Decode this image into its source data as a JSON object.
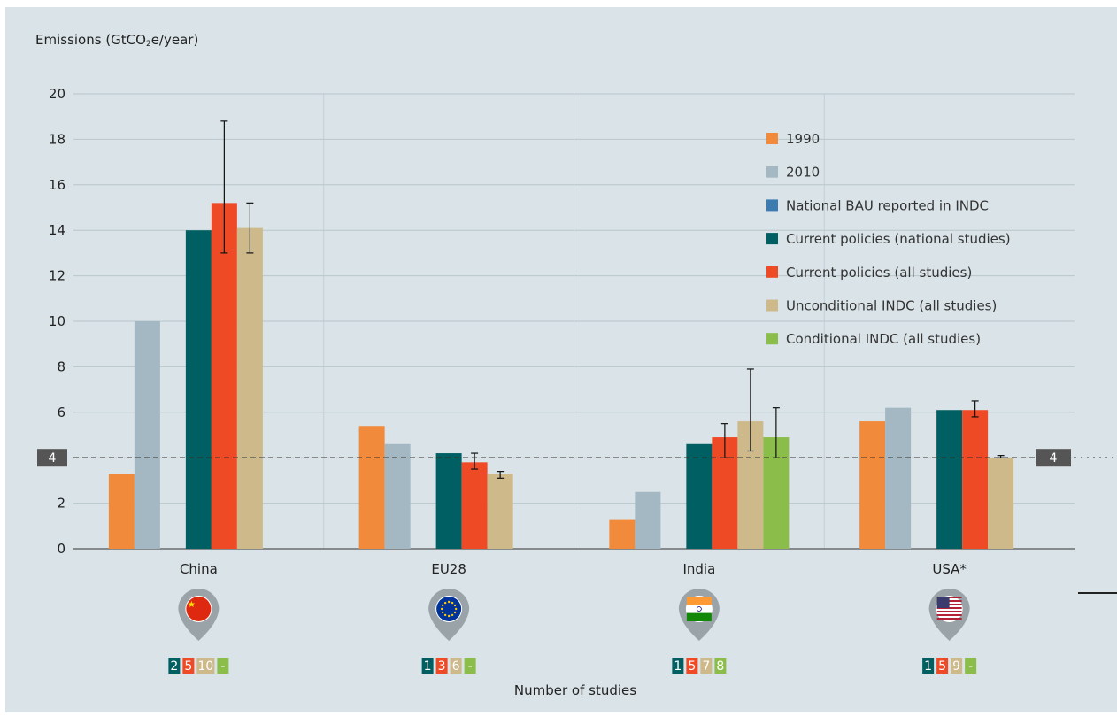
{
  "chart_data": {
    "type": "bar",
    "ylabel_main": "Emissions (GtCO",
    "ylabel_sub": "2",
    "ylabel_tail": "e/year)",
    "xlabel": "Number of studies",
    "ylim": [
      0,
      20
    ],
    "yticks": [
      "0",
      "2",
      "4",
      "6",
      "8",
      "10",
      "12",
      "14",
      "16",
      "18",
      "20"
    ],
    "reference_line": {
      "value": 4,
      "label": "4"
    },
    "legend_position": "top-right",
    "categories": [
      "China",
      "EU28",
      "India",
      "USA*"
    ],
    "series": [
      {
        "name": "1990",
        "color": "#f28a3c",
        "values": [
          3.3,
          5.4,
          1.3,
          5.6
        ]
      },
      {
        "name": "2010",
        "color": "#a3b8c2",
        "values": [
          10.0,
          4.6,
          2.5,
          6.2
        ]
      },
      {
        "name": "National BAU reported in INDC",
        "color": "#3b7bb0",
        "values": [
          null,
          null,
          null,
          null
        ]
      },
      {
        "name": "Current policies (national studies)",
        "color": "#005f62",
        "values": [
          14.0,
          4.2,
          4.6,
          6.1
        ]
      },
      {
        "name": "Current policies (all studies)",
        "color": "#ef4a26",
        "values": [
          15.2,
          3.8,
          4.9,
          6.1
        ],
        "error": [
          [
            13.0,
            18.8
          ],
          [
            3.5,
            4.2
          ],
          [
            4.0,
            5.5
          ],
          [
            5.8,
            6.5
          ]
        ]
      },
      {
        "name": "Unconditional INDC (all studies)",
        "color": "#cdb98a",
        "values": [
          14.1,
          3.3,
          5.6,
          4.0
        ],
        "error": [
          [
            13.0,
            15.2
          ],
          [
            3.1,
            3.4
          ],
          [
            4.3,
            7.9
          ],
          [
            4.0,
            4.1
          ]
        ]
      },
      {
        "name": "Conditional INDC (all studies)",
        "color": "#8bbd4a",
        "values": [
          null,
          null,
          4.9,
          null
        ],
        "error": [
          null,
          null,
          [
            4.0,
            6.2
          ],
          null
        ]
      }
    ],
    "flags": [
      "china-flag-icon",
      "eu-flag-icon",
      "india-flag-icon",
      "usa-flag-icon"
    ],
    "studies": [
      [
        "2",
        "5",
        "10",
        "-"
      ],
      [
        "1",
        "3",
        "6",
        "-"
      ],
      [
        "1",
        "5",
        "7",
        "8"
      ],
      [
        "1",
        "5",
        "9",
        "-"
      ]
    ],
    "study_colors": [
      "#005f62",
      "#ef4a26",
      "#cdb98a",
      "#8bbd4a"
    ]
  }
}
